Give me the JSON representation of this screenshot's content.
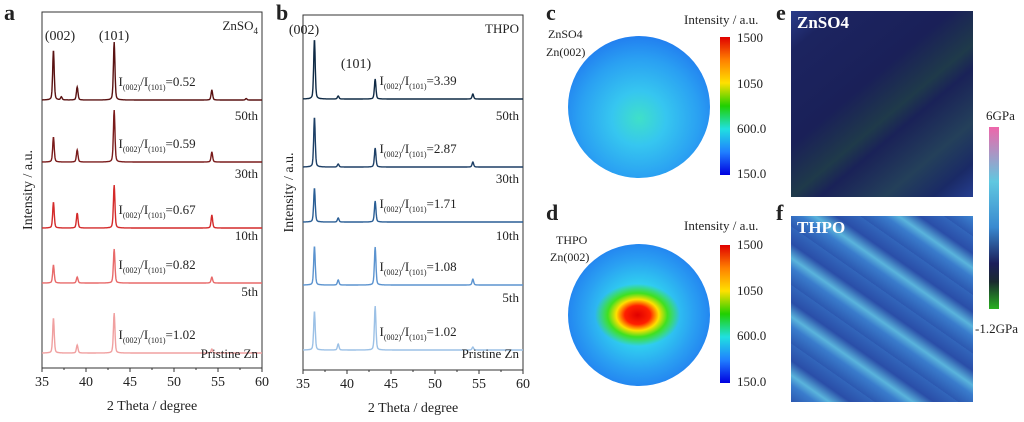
{
  "panel_labels": {
    "a": "a",
    "b": "b",
    "c": "c",
    "d": "d",
    "e": "e",
    "f": "f"
  },
  "chart_data": [
    {
      "type": "line",
      "panel": "a",
      "xlabel": "2 Theta / degree",
      "ylabel": "Intensity / a.u.",
      "xlim": [
        35,
        60
      ],
      "xticks": [
        "35",
        "40",
        "45",
        "50",
        "55",
        "60"
      ],
      "corner_label": "ZnSO4",
      "peak_labels": [
        "(002)",
        "(101)"
      ],
      "series": [
        {
          "name": "50th",
          "ratio": "0.52",
          "color": "#5a1212",
          "peaks": [
            [
              36.3,
              5.0
            ],
            [
              37.2,
              0.3
            ],
            [
              39.0,
              1.3
            ],
            [
              43.2,
              5.8
            ],
            [
              54.3,
              1.0
            ],
            [
              58.2,
              0.15
            ]
          ]
        },
        {
          "name": "30th",
          "ratio": "0.59",
          "color": "#7a1b1b",
          "peaks": [
            [
              36.3,
              2.5
            ],
            [
              39.0,
              1.2
            ],
            [
              43.2,
              5.2
            ],
            [
              54.3,
              1.0
            ]
          ]
        },
        {
          "name": "10th",
          "ratio": "0.67",
          "color": "#d42a2a",
          "peaks": [
            [
              36.3,
              2.6
            ],
            [
              39.0,
              1.5
            ],
            [
              43.2,
              4.3
            ],
            [
              54.3,
              1.3
            ]
          ]
        },
        {
          "name": "5th",
          "ratio": "0.82",
          "color": "#e86a6a",
          "peaks": [
            [
              36.3,
              1.8
            ],
            [
              39.0,
              0.6
            ],
            [
              43.2,
              3.4
            ],
            [
              54.3,
              0.6
            ]
          ]
        },
        {
          "name": "Pristine Zn",
          "ratio": "1.02",
          "color": "#f0a0a0",
          "peaks": [
            [
              36.3,
              3.5
            ],
            [
              39.0,
              0.8
            ],
            [
              43.2,
              4.0
            ],
            [
              54.3,
              0.4
            ]
          ]
        }
      ]
    },
    {
      "type": "line",
      "panel": "b",
      "xlabel": "2 Theta / degree",
      "ylabel": "Intensity / a.u.",
      "xlim": [
        35,
        60
      ],
      "xticks": [
        "35",
        "40",
        "45",
        "50",
        "55",
        "60"
      ],
      "corner_label": "THPO",
      "peak_labels": [
        "(002)",
        "(101)"
      ],
      "series": [
        {
          "name": "50th",
          "ratio": "3.39",
          "color": "#0f2a45",
          "peaks": [
            [
              36.3,
              6.0
            ],
            [
              39.0,
              0.3
            ],
            [
              43.2,
              2.0
            ],
            [
              54.3,
              0.5
            ]
          ]
        },
        {
          "name": "30th",
          "ratio": "2.87",
          "color": "#1d3f66",
          "peaks": [
            [
              36.3,
              5.0
            ],
            [
              39.0,
              0.3
            ],
            [
              43.2,
              1.9
            ],
            [
              54.3,
              0.5
            ]
          ]
        },
        {
          "name": "10th",
          "ratio": "1.71",
          "color": "#2a5e95",
          "peaks": [
            [
              36.3,
              3.4
            ],
            [
              39.0,
              0.4
            ],
            [
              43.2,
              2.1
            ]
          ]
        },
        {
          "name": "5th",
          "ratio": "1.08",
          "color": "#5b93cf",
          "peaks": [
            [
              36.3,
              3.9
            ],
            [
              39.0,
              0.5
            ],
            [
              43.2,
              3.8
            ],
            [
              54.3,
              0.6
            ]
          ]
        },
        {
          "name": "Pristine Zn",
          "ratio": "1.02",
          "color": "#9cc1e6",
          "peaks": [
            [
              36.3,
              3.9
            ],
            [
              39.0,
              0.6
            ],
            [
              43.2,
              4.4
            ],
            [
              54.3,
              0.3
            ]
          ]
        }
      ]
    }
  ],
  "ratio_prefix": "I",
  "ratio_sub1": "(002)",
  "ratio_mid": "/I",
  "ratio_sub2": "(101)",
  "ratio_eq": "=",
  "pole_figures": {
    "c": {
      "sample": "ZnSO4",
      "plane": "Zn(002)",
      "colorbar_title": "Intensity / a.u.",
      "ticks": [
        "1500",
        "1050",
        "600.0",
        "150.0"
      ]
    },
    "d": {
      "sample": "THPO",
      "plane": "Zn(002)",
      "colorbar_title": "Intensity / a.u.",
      "ticks": [
        "1500",
        "1050",
        "600.0",
        "150.0"
      ]
    }
  },
  "modulus_maps": {
    "e": {
      "label": "ZnSO4"
    },
    "f": {
      "label": "THPO"
    },
    "colorbar_max": "6GPa",
    "colorbar_min": "-1.2GPa"
  }
}
